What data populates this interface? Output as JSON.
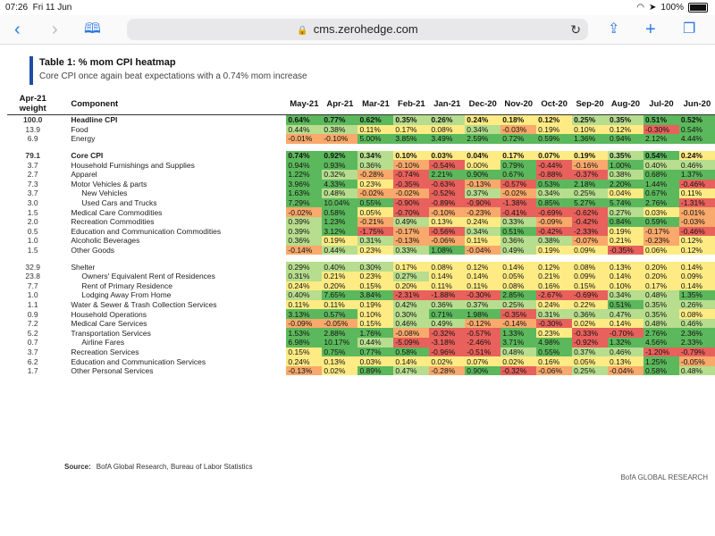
{
  "status": {
    "time": "07:26",
    "date": "Fri 11 Jun",
    "battery": "100%"
  },
  "browser": {
    "url": "cms.zerohedge.com"
  },
  "table_title": "Table 1: % mom CPI heatmap",
  "subtitle": "Core CPI once again beat expectations with a 0.74% mom increase",
  "headers": {
    "weight": "Apr-21 weight",
    "component": "Component",
    "months": [
      "May-21",
      "Apr-21",
      "Mar-21",
      "Feb-21",
      "Jan-21",
      "Dec-20",
      "Nov-20",
      "Oct-20",
      "Sep-20",
      "Aug-20",
      "Jul-20",
      "Jun-20"
    ]
  },
  "rows": [
    {
      "w": "100.0",
      "name": "Headline CPI",
      "bold": true,
      "v": [
        "0.64%",
        "0.77%",
        "0.62%",
        "0.35%",
        "0.26%",
        "0.24%",
        "0.18%",
        "0.12%",
        "0.25%",
        "0.35%",
        "0.51%",
        "0.52%"
      ]
    },
    {
      "w": "13.9",
      "name": "Food",
      "v": [
        "0.44%",
        "0.38%",
        "0.11%",
        "0.17%",
        "0.08%",
        "0.34%",
        "-0.03%",
        "0.19%",
        "0.10%",
        "0.12%",
        "-0.30%",
        "0.54%"
      ]
    },
    {
      "w": "6.9",
      "name": "Energy",
      "v": [
        "-0.01%",
        "-0.10%",
        "5.00%",
        "3.85%",
        "3.49%",
        "2.59%",
        "0.72%",
        "0.59%",
        "1.36%",
        "0.94%",
        "2.12%",
        "4.44%"
      ]
    },
    {
      "gap": true
    },
    {
      "w": "79.1",
      "name": "Core CPI",
      "bold": true,
      "v": [
        "0.74%",
        "0.92%",
        "0.34%",
        "0.10%",
        "0.03%",
        "0.04%",
        "0.17%",
        "0.07%",
        "0.19%",
        "0.35%",
        "0.54%",
        "0.24%"
      ]
    },
    {
      "w": "3.7",
      "name": "Household Furnishings and Supplies",
      "v": [
        "0.94%",
        "0.93%",
        "0.36%",
        "-0.10%",
        "-0.54%",
        "0.00%",
        "0.79%",
        "-0.44%",
        "-0.16%",
        "1.00%",
        "0.40%",
        "0.46%"
      ]
    },
    {
      "w": "2.7",
      "name": "Apparel",
      "v": [
        "1.22%",
        "0.32%",
        "-0.28%",
        "-0.74%",
        "2.21%",
        "0.90%",
        "0.67%",
        "-0.88%",
        "-0.37%",
        "0.38%",
        "0.68%",
        "1.37%"
      ]
    },
    {
      "w": "7.3",
      "name": "Motor Vehicles & parts",
      "v": [
        "3.96%",
        "4.33%",
        "0.23%",
        "-0.35%",
        "-0.63%",
        "-0.13%",
        "-0.57%",
        "0.53%",
        "2.18%",
        "2.20%",
        "1.44%",
        "-0.46%"
      ]
    },
    {
      "w": "3.7",
      "name": "New Vehicles",
      "ind": true,
      "v": [
        "1.63%",
        "0.48%",
        "-0.02%",
        "-0.02%",
        "-0.52%",
        "0.37%",
        "-0.02%",
        "0.34%",
        "0.25%",
        "0.04%",
        "0.67%",
        "0.11%"
      ]
    },
    {
      "w": "3.0",
      "name": "Used Cars and Trucks",
      "ind": true,
      "v": [
        "7.29%",
        "10.04%",
        "0.55%",
        "-0.90%",
        "-0.89%",
        "-0.90%",
        "-1.38%",
        "0.85%",
        "5.27%",
        "5.74%",
        "2.76%",
        "-1.31%"
      ]
    },
    {
      "w": "1.5",
      "name": "Medical Care Commodities",
      "v": [
        "-0.02%",
        "0.58%",
        "0.05%",
        "-0.70%",
        "-0.10%",
        "-0.23%",
        "-0.41%",
        "-0.69%",
        "-0.62%",
        "0.27%",
        "0.03%",
        "-0.01%"
      ]
    },
    {
      "w": "2.0",
      "name": "Recreation Commodities",
      "v": [
        "0.39%",
        "1.23%",
        "-0.21%",
        "0.49%",
        "0.13%",
        "0.24%",
        "0.33%",
        "-0.09%",
        "-0.42%",
        "0.84%",
        "0.59%",
        "-0.03%"
      ]
    },
    {
      "w": "0.5",
      "name": "Education and Communication Commodities",
      "v": [
        "0.39%",
        "3.12%",
        "-1.75%",
        "-0.17%",
        "-0.56%",
        "0.34%",
        "0.51%",
        "-0.42%",
        "-2.33%",
        "0.19%",
        "-0.17%",
        "-0.46%"
      ]
    },
    {
      "w": "1.0",
      "name": "Alcoholic Beverages",
      "v": [
        "0.36%",
        "0.19%",
        "0.31%",
        "-0.13%",
        "-0.06%",
        "0.11%",
        "0.36%",
        "0.38%",
        "-0.07%",
        "0.21%",
        "-0.23%",
        "0.12%"
      ]
    },
    {
      "w": "1.5",
      "name": "Other Goods",
      "v": [
        "-0.14%",
        "0.44%",
        "0.23%",
        "0.33%",
        "1.08%",
        "-0.04%",
        "0.49%",
        "0.19%",
        "0.09%",
        "-0.35%",
        "0.06%",
        "0.12%"
      ]
    },
    {
      "gap": true
    },
    {
      "w": "32.9",
      "name": "Shelter",
      "v": [
        "0.29%",
        "0.40%",
        "0.30%",
        "0.17%",
        "0.08%",
        "0.12%",
        "0.14%",
        "0.12%",
        "0.08%",
        "0.13%",
        "0.20%",
        "0.14%"
      ]
    },
    {
      "w": "23.8",
      "name": "Owners' Equivalent Rent of Residences",
      "ind": true,
      "v": [
        "0.31%",
        "0.21%",
        "0.23%",
        "0.27%",
        "0.14%",
        "0.14%",
        "0.05%",
        "0.21%",
        "0.09%",
        "0.14%",
        "0.20%",
        "0.09%"
      ]
    },
    {
      "w": "7.7",
      "name": "Rent of Primary Residence",
      "ind": true,
      "v": [
        "0.24%",
        "0.20%",
        "0.15%",
        "0.20%",
        "0.11%",
        "0.11%",
        "0.08%",
        "0.16%",
        "0.15%",
        "0.10%",
        "0.17%",
        "0.14%"
      ]
    },
    {
      "w": "1.0",
      "name": "Lodging Away From Home",
      "ind": true,
      "v": [
        "0.40%",
        "7.65%",
        "3.84%",
        "-2.31%",
        "-1.88%",
        "-0.30%",
        "2.85%",
        "-2.67%",
        "-0.69%",
        "0.34%",
        "0.48%",
        "1.35%"
      ]
    },
    {
      "w": "1.1",
      "name": "Water & Sewer & Trash Collection Services",
      "v": [
        "0.11%",
        "0.11%",
        "0.19%",
        "0.42%",
        "0.36%",
        "0.37%",
        "0.25%",
        "0.24%",
        "0.22%",
        "0.51%",
        "0.35%",
        "0.26%"
      ]
    },
    {
      "w": "0.9",
      "name": "Household Operations",
      "v": [
        "3.13%",
        "0.57%",
        "0.10%",
        "0.30%",
        "0.71%",
        "1.98%",
        "-0.35%",
        "0.31%",
        "0.36%",
        "0.47%",
        "0.35%",
        "0.08%"
      ]
    },
    {
      "w": "7.2",
      "name": "Medical Care Services",
      "v": [
        "-0.09%",
        "-0.05%",
        "0.15%",
        "0.46%",
        "0.49%",
        "-0.12%",
        "-0.14%",
        "-0.30%",
        "0.02%",
        "0.14%",
        "0.48%",
        "0.46%"
      ]
    },
    {
      "w": "5.2",
      "name": "Transportation Services",
      "v": [
        "1.53%",
        "2.88%",
        "1.76%",
        "-0.08%",
        "-0.32%",
        "-0.57%",
        "1.33%",
        "0.23%",
        "-0.33%",
        "-0.70%",
        "2.76%",
        "2.36%"
      ]
    },
    {
      "w": "0.7",
      "name": "Airline Fares",
      "ind": true,
      "v": [
        "6.98%",
        "10.17%",
        "0.44%",
        "-5.09%",
        "-3.18%",
        "-2.46%",
        "3.71%",
        "4.98%",
        "-0.92%",
        "1.32%",
        "4.56%",
        "2.33%"
      ]
    },
    {
      "w": "3.7",
      "name": "Recreation Services",
      "v": [
        "0.15%",
        "0.75%",
        "0.77%",
        "0.58%",
        "-0.96%",
        "-0.51%",
        "0.48%",
        "0.55%",
        "0.37%",
        "0.46%",
        "-1.20%",
        "-0.79%"
      ]
    },
    {
      "w": "6.2",
      "name": "Education and Communication Services",
      "v": [
        "0.24%",
        "0.13%",
        "0.03%",
        "0.14%",
        "0.02%",
        "0.07%",
        "0.02%",
        "0.16%",
        "0.05%",
        "0.13%",
        "1.25%",
        "-0.05%"
      ]
    },
    {
      "w": "1.7",
      "name": "Other Personal Services",
      "v": [
        "-0.13%",
        "0.02%",
        "0.89%",
        "0.47%",
        "-0.28%",
        "0.90%",
        "-0.32%",
        "-0.06%",
        "0.25%",
        "-0.04%",
        "0.58%",
        "0.48%"
      ]
    }
  ],
  "source_label": "Source:",
  "source_text": "BofA Global Research, Bureau of Labor Statistics",
  "brand": "BofA GLOBAL RESEARCH",
  "colors": {
    "green": "#5cb85c",
    "light_green": "#b7dd8e",
    "yellow": "#ffeb84",
    "orange": "#f8a96b",
    "red": "#e8615c"
  }
}
